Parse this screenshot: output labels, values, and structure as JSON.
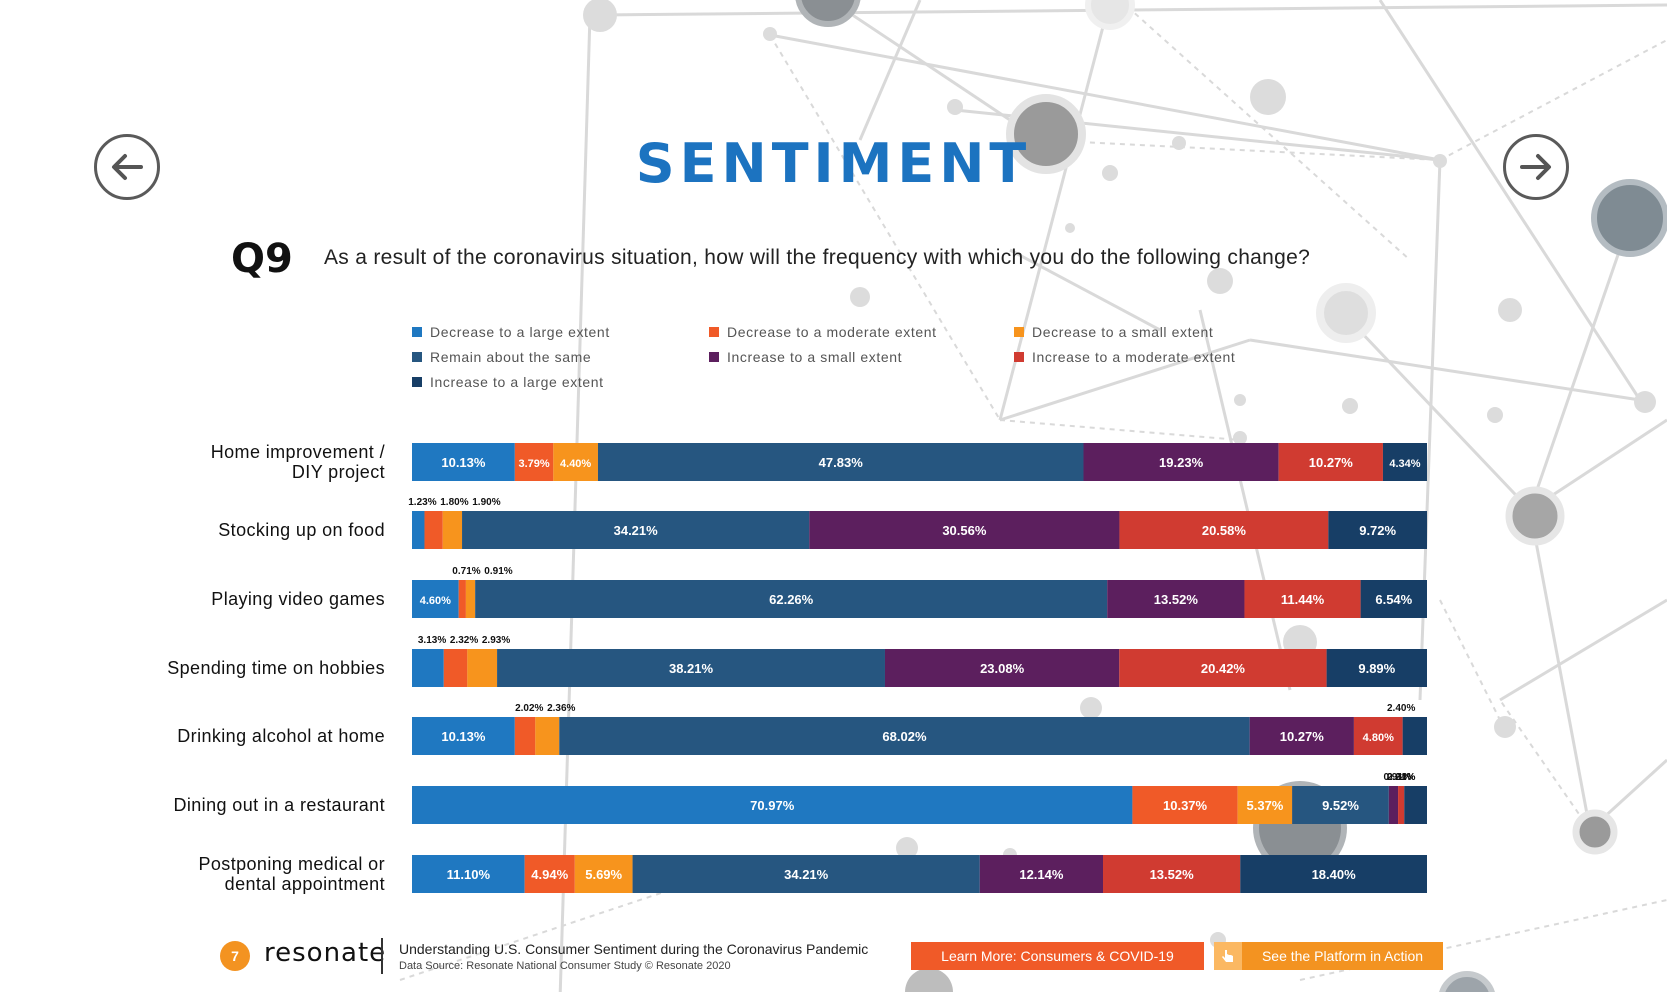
{
  "header": {
    "title": "SENTIMENT",
    "question_number": "Q9",
    "question_text": "As a result of the coronavirus situation, how will the frequency with which you do the following change?"
  },
  "nav": {
    "prev_icon": "arrow-left-icon",
    "next_icon": "arrow-right-icon"
  },
  "colors": {
    "accent": "#1c73c0",
    "series": [
      "#1f78c1",
      "#f05a28",
      "#f7941d",
      "#265680",
      "#5c1f5e",
      "#d03b31",
      "#173e66"
    ]
  },
  "chart_data": {
    "type": "bar",
    "orientation": "horizontal",
    "stacked": true,
    "percent_stacked": true,
    "title": "",
    "xlabel": "",
    "ylabel": "",
    "legend_position": "top",
    "categories": [
      "Home improvement / DIY project",
      "Stocking up on food",
      "Playing video games",
      "Spending time on hobbies",
      "Drinking alcohol at home",
      "Dining out in a restaurant",
      "Postponing medical or dental appointment"
    ],
    "series": [
      {
        "name": "Decrease to a large extent",
        "values": [
          10.13,
          1.23,
          4.6,
          3.13,
          10.13,
          70.97,
          11.1
        ]
      },
      {
        "name": "Decrease to a moderate extent",
        "values": [
          3.79,
          1.8,
          0.71,
          2.32,
          2.02,
          10.37,
          4.94
        ]
      },
      {
        "name": "Decrease to a small extent",
        "values": [
          4.4,
          1.9,
          0.91,
          2.93,
          2.36,
          5.37,
          5.69
        ]
      },
      {
        "name": "Remain about the same",
        "values": [
          47.83,
          34.21,
          62.26,
          38.21,
          68.02,
          9.52,
          34.21
        ]
      },
      {
        "name": "Increase to a small extent",
        "values": [
          19.23,
          30.56,
          13.52,
          23.08,
          10.27,
          0.91,
          12.14
        ]
      },
      {
        "name": "Increase to a moderate extent",
        "values": [
          10.27,
          20.58,
          11.44,
          20.42,
          4.8,
          0.61,
          13.52
        ]
      },
      {
        "name": "Increase to a large extent",
        "values": [
          4.34,
          9.72,
          6.54,
          9.89,
          2.4,
          2.24,
          18.4
        ]
      }
    ],
    "label_texts": [
      [
        "10.13%",
        "3.79%",
        "4.40%",
        "47.83%",
        "19.23%",
        "10.27%",
        "4.34%"
      ],
      [
        "1.23%",
        "1.80%",
        "1.90%",
        "34.21%",
        "30.56%",
        "20.58%",
        "9.72%"
      ],
      [
        "4.60%",
        "0.71%",
        "0.91%",
        "62.26%",
        "13.52%",
        "11.44%",
        "6.54%"
      ],
      [
        "3.13%",
        "2.32%",
        "2.93%",
        "38.21%",
        "23.08%",
        "20.42%",
        "9.89%"
      ],
      [
        "10.13%",
        "2.02%",
        "2.36%",
        "68.02%",
        "10.27%",
        "4.80%",
        "2.40%"
      ],
      [
        "70.97%",
        "10.37%",
        "5.37%",
        "9.52%",
        "0.91%",
        "0.61%",
        "2.24%"
      ],
      [
        "11.10%",
        "4.94%",
        "5.69%",
        "34.21%",
        "12.14%",
        "13.52%",
        "18.40%"
      ]
    ]
  },
  "row_labels": [
    [
      "Home improvement /",
      "DIY project"
    ],
    [
      "Stocking up on food"
    ],
    [
      "Playing video games"
    ],
    [
      "Spending time on hobbies"
    ],
    [
      "Drinking alcohol at home"
    ],
    [
      "Dining out in a restaurant"
    ],
    [
      "Postponing medical or",
      "dental appointment"
    ]
  ],
  "footer": {
    "page_number": "7",
    "logo_text": "resonate",
    "study_title": "Understanding U.S. Consumer Sentiment during the Coronavirus Pandemic",
    "source": "Data Source: Resonate National Consumer Study © Resonate 2020",
    "cta_primary": "Learn More: Consumers & COVID-19",
    "cta_secondary": "See the Platform in Action",
    "cta_secondary_icon": "pointer-hand-icon"
  }
}
